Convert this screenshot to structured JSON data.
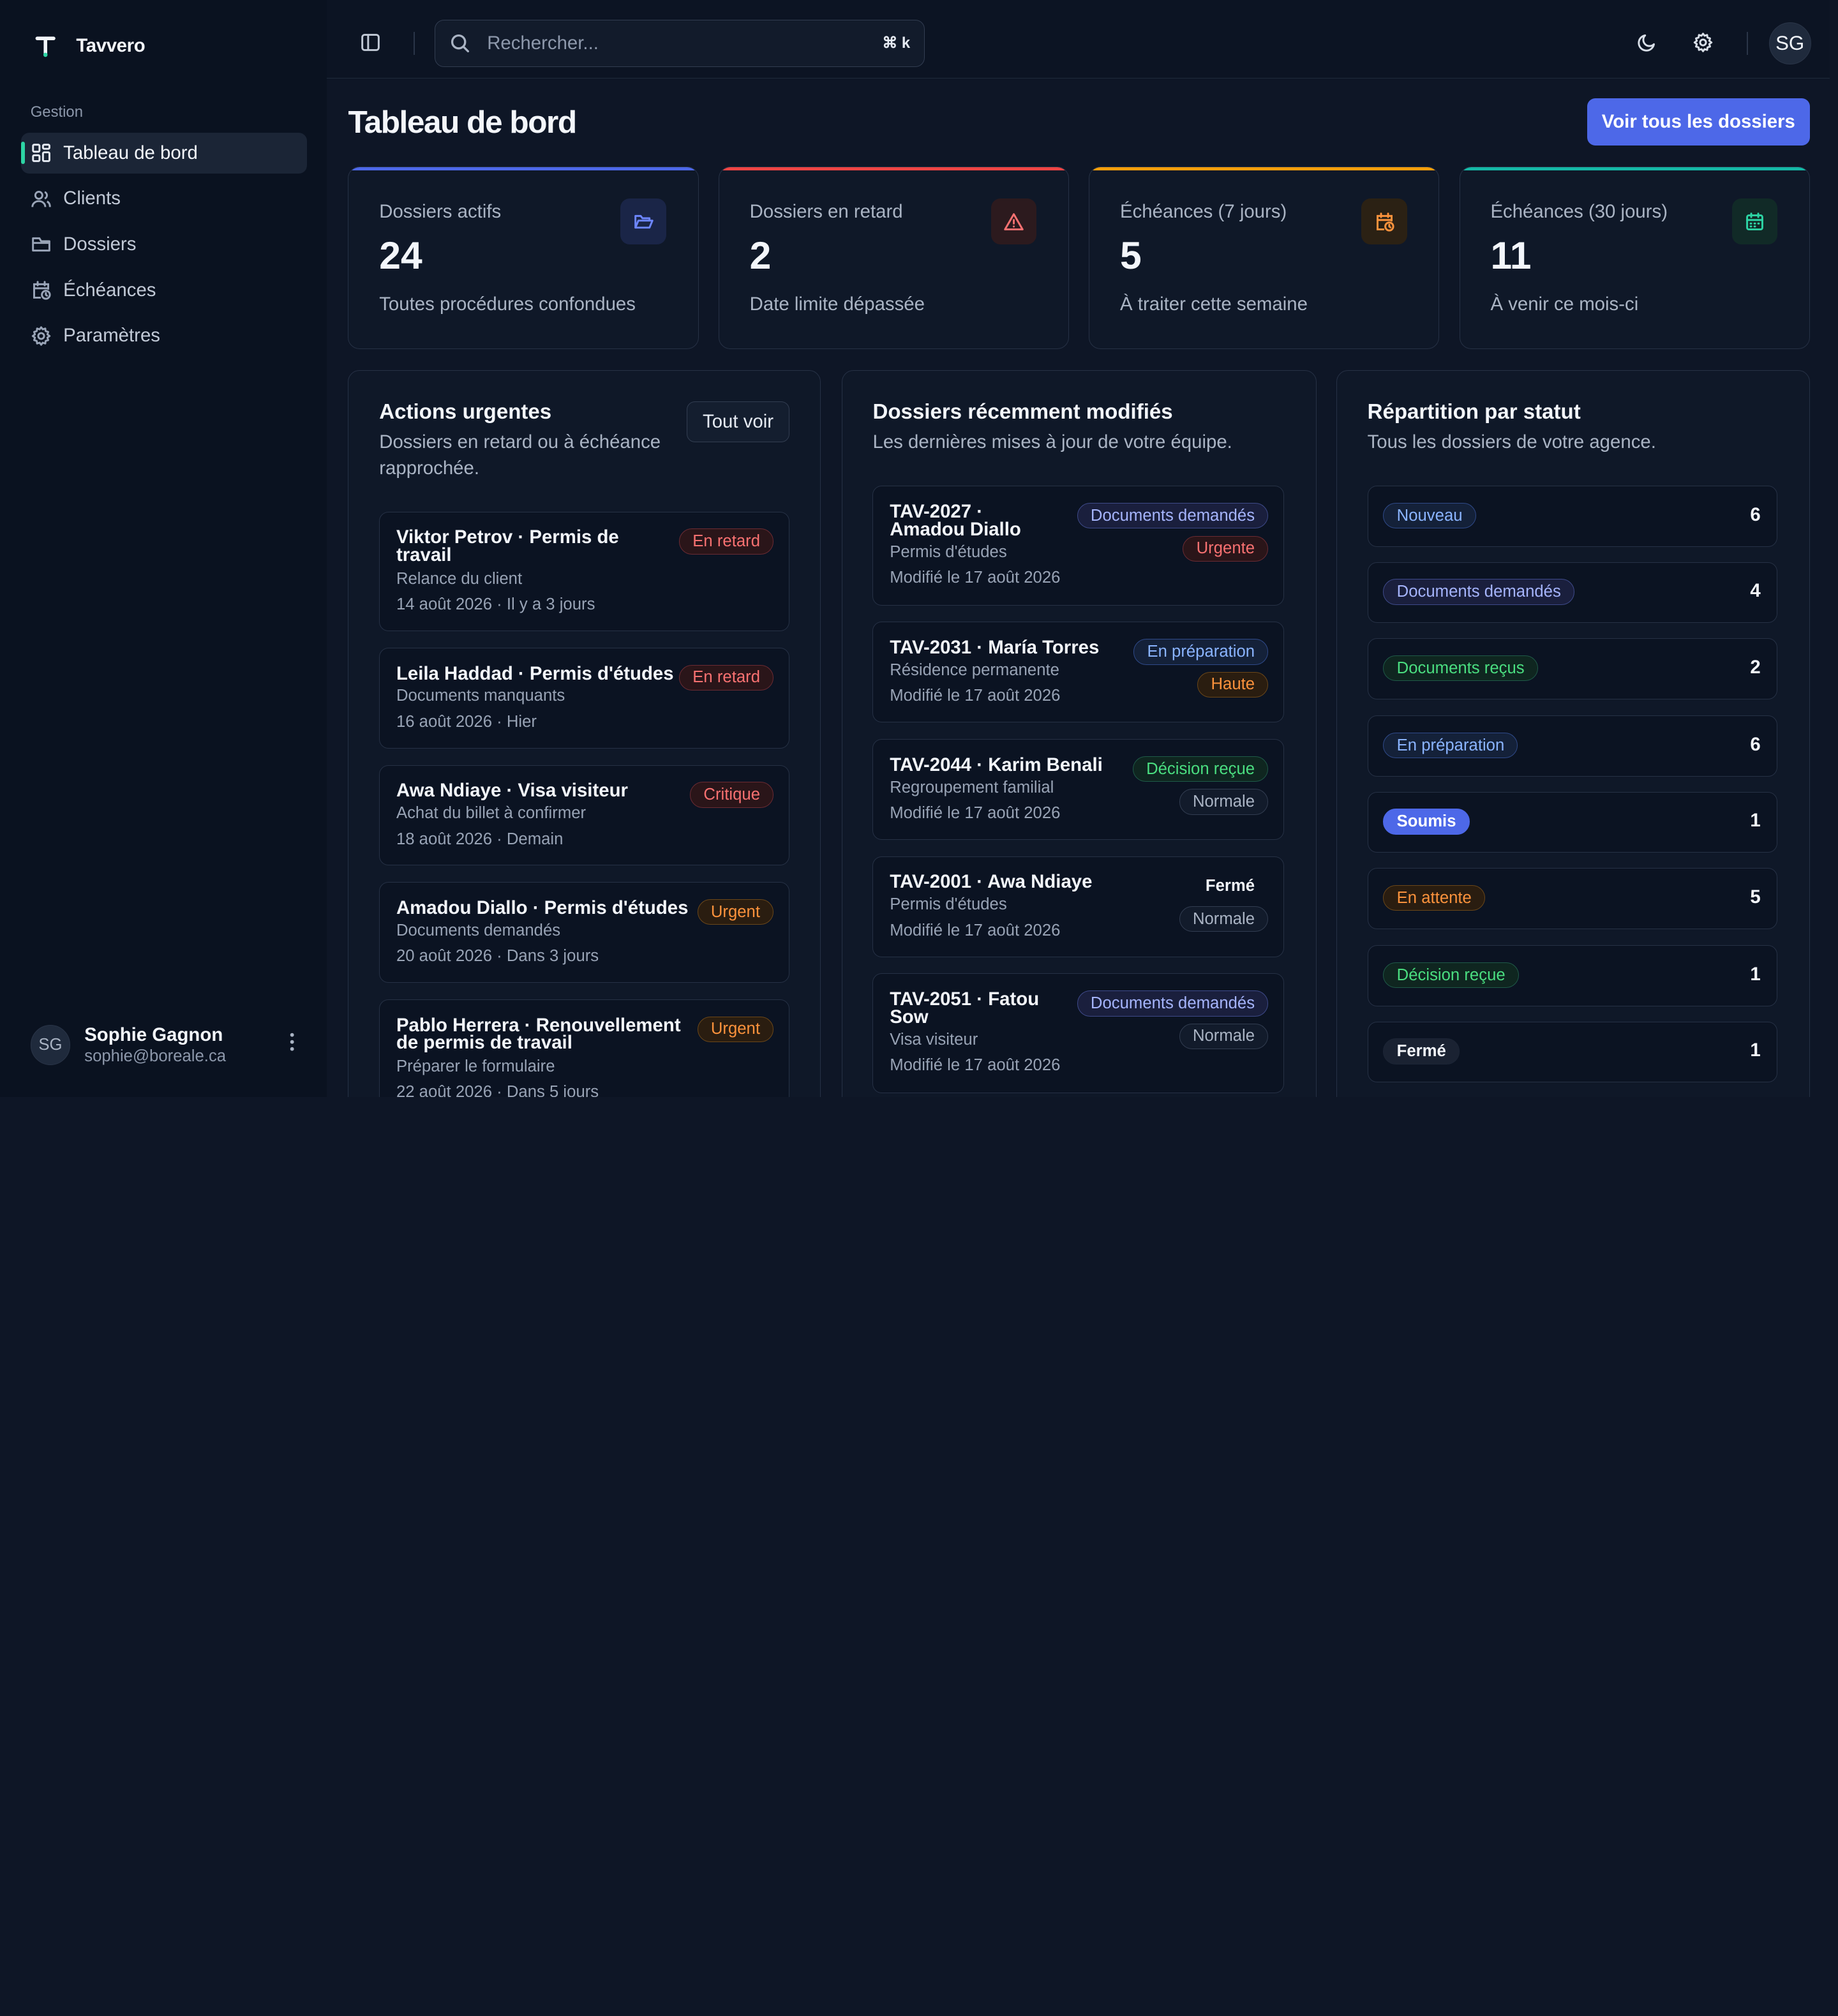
{
  "brand": {
    "name": "Tavvero"
  },
  "sidebar": {
    "section": "Gestion",
    "items": [
      {
        "label": "Tableau de bord",
        "icon": "dashboard-icon",
        "active": true
      },
      {
        "label": "Clients",
        "icon": "users-icon"
      },
      {
        "label": "Dossiers",
        "icon": "folder-icon"
      },
      {
        "label": "Échéances",
        "icon": "calendar-clock-icon"
      },
      {
        "label": "Paramètres",
        "icon": "gear-icon"
      }
    ],
    "user": {
      "initials": "SG",
      "name": "Sophie Gagnon",
      "email": "sophie@boreale.ca"
    }
  },
  "topbar": {
    "search_placeholder": "Rechercher...",
    "shortcut": "⌘ k",
    "avatar_initials": "SG"
  },
  "page": {
    "title": "Tableau de bord",
    "primary_action": "Voir tous les dossiers"
  },
  "stats": [
    {
      "label": "Dossiers actifs",
      "value": "24",
      "sub": "Toutes procédures confondues",
      "accent": "#4d68e8",
      "icon": "folder-open-icon"
    },
    {
      "label": "Dossiers en retard",
      "value": "2",
      "sub": "Date limite dépassée",
      "accent": "#ef4444",
      "icon": "warning-triangle-icon"
    },
    {
      "label": "Échéances (7 jours)",
      "value": "5",
      "sub": "À traiter cette semaine",
      "accent": "#f59e0b",
      "icon": "calendar-clock-icon"
    },
    {
      "label": "Échéances (30 jours)",
      "value": "11",
      "sub": "À venir ce mois-ci",
      "accent": "#14b8a6",
      "icon": "calendar-icon"
    }
  ],
  "urgent": {
    "title": "Actions urgentes",
    "subtitle_l1": "Dossiers en retard ou à échéance",
    "subtitle_l2": "rapprochée.",
    "button": "Tout voir",
    "items": [
      {
        "title_l1": "Viktor Petrov · Permis de",
        "title_l2": "travail",
        "line2": "Relance du client",
        "line3": "14 août 2026 · Il y a 3 jours",
        "badge": "En retard",
        "tone": "red"
      },
      {
        "title_l1": "Leila Haddad · Permis d'études",
        "title_l2": "",
        "line2": "Documents manquants",
        "line3": "16 août 2026 · Hier",
        "badge": "En retard",
        "tone": "red"
      },
      {
        "title_l1": "Awa Ndiaye · Visa visiteur",
        "title_l2": "",
        "line2": "Achat du billet à confirmer",
        "line3": "18 août 2026 · Demain",
        "badge": "Critique",
        "tone": "red"
      },
      {
        "title_l1": "Amadou Diallo · Permis d'études",
        "title_l2": "",
        "line2": "Documents demandés",
        "line3": "20 août 2026 · Dans 3 jours",
        "badge": "Urgent",
        "tone": "orange"
      },
      {
        "title_l1": "Pablo Herrera · Renouvellement",
        "title_l2": "de permis de travail",
        "line2": "Préparer le formulaire",
        "line3": "22 août 2026 · Dans 5 jours",
        "badge": "Urgent",
        "tone": "orange"
      }
    ]
  },
  "recent": {
    "title": "Dossiers récemment modifiés",
    "subtitle": "Les dernières mises à jour de votre équipe.",
    "items": [
      {
        "title_l1": "TAV-2027 ·",
        "title_l2": "Amadou Diallo",
        "line2": "Permis d'études",
        "line3": "Modifié le 17 août 2026",
        "status": "Documents demandés",
        "status_tone": "indigo",
        "priority": "Urgente",
        "priority_tone": "red"
      },
      {
        "title_l1": "TAV-2031 · María Torres",
        "title_l2": "",
        "line2": "Résidence permanente",
        "line3": "Modifié le 17 août 2026",
        "status": "En préparation",
        "status_tone": "blue",
        "priority": "Haute",
        "priority_tone": "orange"
      },
      {
        "title_l1": "TAV-2044 · Karim Benali",
        "title_l2": "",
        "line2": "Regroupement familial",
        "line3": "Modifié le 17 août 2026",
        "status": "Décision reçue",
        "status_tone": "green",
        "priority": "Normale",
        "priority_tone": "gray"
      },
      {
        "title_l1": "TAV-2001 · Awa Ndiaye",
        "title_l2": "",
        "line2": "Permis d'études",
        "line3": "Modifié le 17 août 2026",
        "status": "Fermé",
        "status_tone": "plain",
        "priority": "Normale",
        "priority_tone": "gray"
      },
      {
        "title_l1": "TAV-2051 · Fatou",
        "title_l2": "Sow",
        "line2": "Visa visiteur",
        "line3": "Modifié le 17 août 2026",
        "status": "Documents demandés",
        "status_tone": "indigo",
        "priority": "Normale",
        "priority_tone": "gray"
      }
    ]
  },
  "distribution": {
    "title": "Répartition par statut",
    "subtitle": "Tous les dossiers de votre agence.",
    "rows": [
      {
        "label": "Nouveau",
        "count": "6",
        "tone": "blue"
      },
      {
        "label": "Documents demandés",
        "count": "4",
        "tone": "indigo"
      },
      {
        "label": "Documents reçus",
        "count": "2",
        "tone": "green"
      },
      {
        "label": "En préparation",
        "count": "6",
        "tone": "blue"
      },
      {
        "label": "Soumis",
        "count": "1",
        "tone": "solidblue"
      },
      {
        "label": "En attente",
        "count": "5",
        "tone": "orange"
      },
      {
        "label": "Décision reçue",
        "count": "1",
        "tone": "green"
      },
      {
        "label": "Fermé",
        "count": "1",
        "tone": "dark"
      }
    ]
  }
}
